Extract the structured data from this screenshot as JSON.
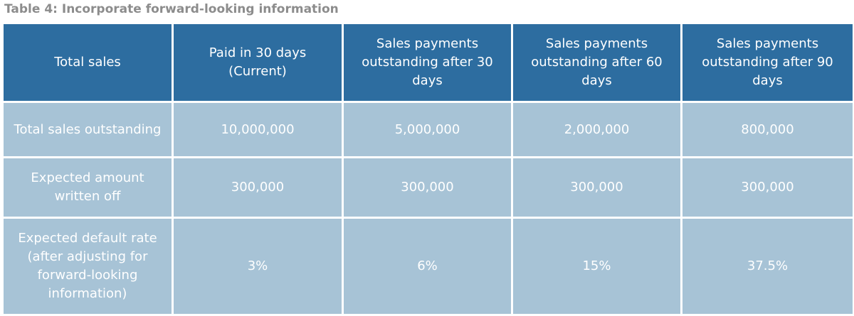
{
  "title": "Table 4: Incorporate forward-looking information",
  "table": {
    "headers": [
      "Total sales",
      "Paid in 30 days (Current)",
      "Sales payments outstanding after 30 days",
      "Sales payments outstanding after 60 days",
      "Sales payments outstanding after 90 days"
    ],
    "rows": [
      [
        "Total sales outstanding",
        "10,000,000",
        "5,000,000",
        "2,000,000",
        "800,000"
      ],
      [
        "Expected amount written off",
        "300,000",
        "300,000",
        "300,000",
        "300,000"
      ],
      [
        "Expected default rate (after adjusting for forward-looking information)",
        "3%",
        "6%",
        "15%",
        "37.5%"
      ]
    ]
  },
  "colors": {
    "header_bg": "#2d6da0",
    "cell_bg": "#a7c3d6",
    "title_text": "#8c8c8c"
  }
}
